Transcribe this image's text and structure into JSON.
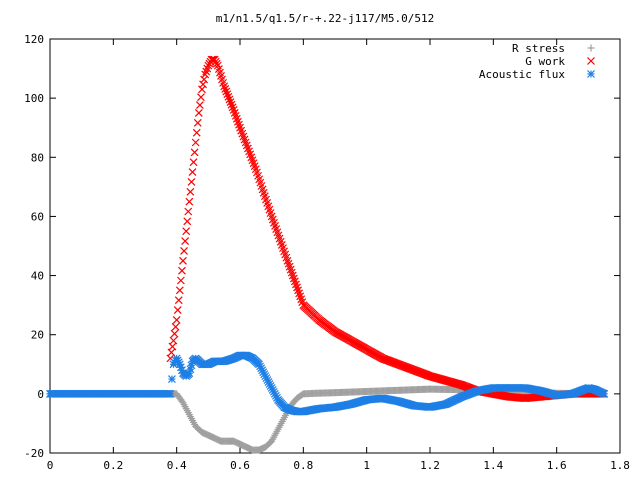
{
  "chart_data": {
    "type": "scatter",
    "title": "m1/n1.5/q1.5/r-+.22-j117/M5.0/512",
    "xlabel": "",
    "ylabel": "",
    "xlim": [
      0,
      1.8
    ],
    "ylim": [
      -20,
      120
    ],
    "xticks": [
      0,
      0.2,
      0.4,
      0.6,
      0.8,
      1,
      1.2,
      1.4,
      1.6,
      1.8
    ],
    "xtick_labels": [
      "0",
      "0.2",
      "0.4",
      "0.6",
      "0.8",
      "1",
      "1.2",
      "1.4",
      "1.6",
      "1.8"
    ],
    "yticks": [
      -20,
      0,
      20,
      40,
      60,
      80,
      100,
      120
    ],
    "ytick_labels": [
      "-20",
      "0",
      "20",
      "40",
      "60",
      "80",
      "100",
      "120"
    ],
    "legend_position": "top-right",
    "grid": false,
    "series": [
      {
        "name": "R stress",
        "marker": "plus",
        "color": "#a0a0a0",
        "x": [
          0.0,
          0.2,
          0.38,
          0.4,
          0.42,
          0.44,
          0.46,
          0.48,
          0.5,
          0.52,
          0.54,
          0.56,
          0.58,
          0.6,
          0.62,
          0.64,
          0.66,
          0.68,
          0.7,
          0.72,
          0.74,
          0.76,
          0.78,
          0.8,
          0.84,
          0.9,
          1.0,
          1.1,
          1.2,
          1.3,
          1.4,
          1.5,
          1.6,
          1.7,
          1.75
        ],
        "y": [
          0,
          0,
          0,
          0,
          -3,
          -7,
          -11,
          -13,
          -14,
          -15,
          -16,
          -16,
          -16,
          -17,
          -18,
          -19,
          -19,
          -18,
          -16,
          -12,
          -8,
          -4,
          -1.5,
          0,
          0.2,
          0.4,
          0.8,
          1.2,
          1.6,
          1.4,
          1,
          0.6,
          0.2,
          0,
          0
        ]
      },
      {
        "name": "G work",
        "marker": "x",
        "color": "#ff0000",
        "x": [
          0.38,
          0.39,
          0.4,
          0.41,
          0.42,
          0.43,
          0.44,
          0.45,
          0.46,
          0.47,
          0.48,
          0.49,
          0.5,
          0.51,
          0.52,
          0.53,
          0.55,
          0.58,
          0.6,
          0.65,
          0.7,
          0.75,
          0.78,
          0.8,
          0.85,
          0.9,
          0.95,
          1.0,
          1.05,
          1.1,
          1.15,
          1.2,
          1.25,
          1.3,
          1.35,
          1.4,
          1.45,
          1.5,
          1.55,
          1.6,
          1.65,
          1.7,
          1.75
        ],
        "y": [
          12,
          18,
          25,
          35,
          45,
          55,
          65,
          75,
          85,
          95,
          103,
          108,
          111,
          113,
          113,
          111,
          104,
          96,
          90,
          76,
          60,
          45,
          36,
          30,
          25,
          21,
          18,
          15,
          12,
          10,
          8,
          6,
          4.5,
          3,
          1,
          0,
          -1,
          -1.5,
          -1,
          -0.5,
          0,
          0,
          0
        ]
      },
      {
        "name": "Acoustic flux",
        "marker": "star",
        "color": "#1e7fe6",
        "x": [
          0.0,
          0.2,
          0.38,
          0.385,
          0.39,
          0.4,
          0.41,
          0.42,
          0.43,
          0.44,
          0.45,
          0.46,
          0.47,
          0.48,
          0.5,
          0.52,
          0.55,
          0.58,
          0.6,
          0.62,
          0.64,
          0.66,
          0.68,
          0.7,
          0.72,
          0.74,
          0.76,
          0.78,
          0.8,
          0.85,
          0.9,
          0.95,
          1.0,
          1.05,
          1.1,
          1.15,
          1.2,
          1.25,
          1.3,
          1.35,
          1.4,
          1.45,
          1.5,
          1.55,
          1.6,
          1.65,
          1.7,
          1.72,
          1.75
        ],
        "y": [
          0,
          0,
          0,
          5,
          10,
          12,
          10,
          7,
          6,
          7,
          11,
          12,
          11,
          10,
          10,
          11,
          11,
          12,
          13,
          13,
          12,
          10,
          6,
          2,
          -2,
          -4.5,
          -5.5,
          -6,
          -6,
          -5,
          -4.5,
          -3.5,
          -2,
          -1.5,
          -2.5,
          -4,
          -4.5,
          -3.5,
          -1,
          1,
          2,
          2,
          2,
          1,
          -0.5,
          0,
          2,
          1.5,
          0
        ]
      }
    ]
  }
}
